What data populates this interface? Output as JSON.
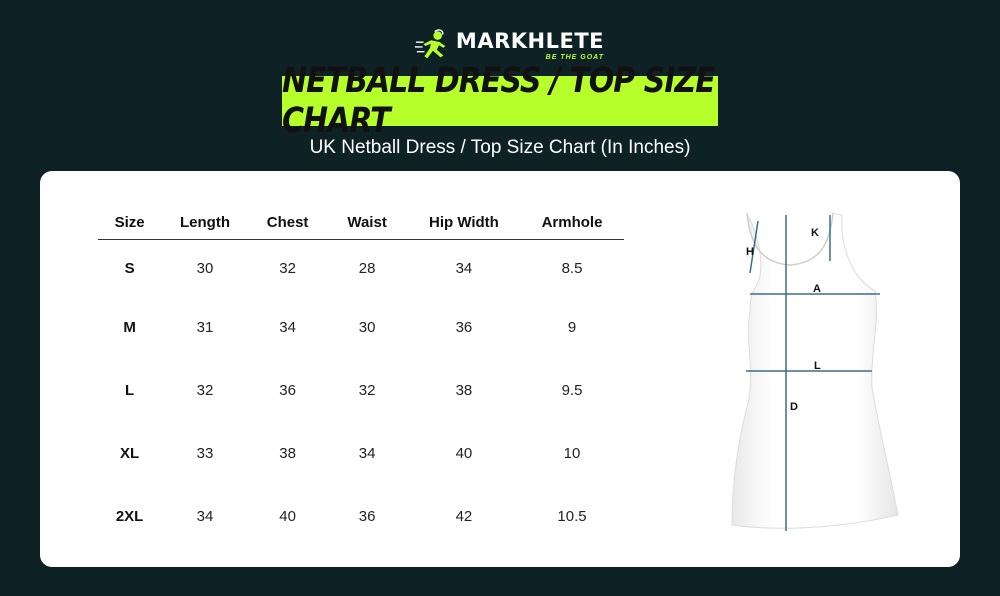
{
  "brand": {
    "name": "MARKHLETE",
    "tagline": "BE THE GOAT",
    "accent_color": "#b6ff2b",
    "background_color": "#0e2226"
  },
  "banner": {
    "title": "NETBALL DRESS / TOP SIZE CHART"
  },
  "subtitle": "UK Netball Dress / Top Size Chart (In Inches)",
  "table": {
    "headers": [
      "Size",
      "Length",
      "Chest",
      "Waist",
      "Hip Width",
      "Armhole"
    ],
    "rows": [
      [
        "S",
        "30",
        "32",
        "28",
        "34",
        "8.5"
      ],
      [
        "M",
        "31",
        "34",
        "30",
        "36",
        "9"
      ],
      [
        "L",
        "32",
        "36",
        "32",
        "38",
        "9.5"
      ],
      [
        "XL",
        "33",
        "38",
        "34",
        "40",
        "10"
      ],
      [
        "2XL",
        "34",
        "40",
        "36",
        "42",
        "10.5"
      ]
    ]
  },
  "diagram": {
    "labels": {
      "h": "H",
      "k": "K",
      "a": "A",
      "l": "L",
      "d": "D"
    },
    "line_color": "#3b6f86"
  }
}
